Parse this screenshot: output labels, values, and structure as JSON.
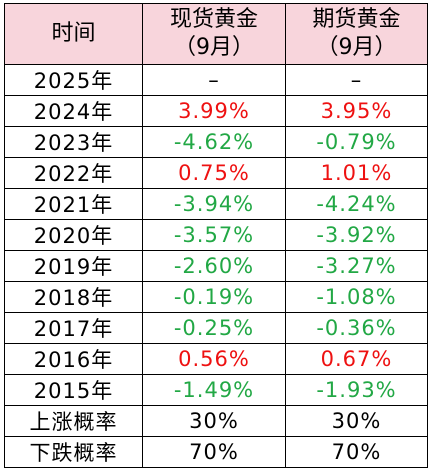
{
  "header": {
    "col1": "时间",
    "col2_line1": "现货黄金",
    "col2_line2": "（9月）",
    "col3_line1": "期货黄金",
    "col3_line2": "（9月）"
  },
  "rows": [
    {
      "year": "2025年",
      "spot": "–",
      "futures": "–",
      "spot_dir": "flat",
      "futures_dir": "flat"
    },
    {
      "year": "2024年",
      "spot": "3.99%",
      "futures": "3.95%",
      "spot_dir": "up",
      "futures_dir": "up"
    },
    {
      "year": "2023年",
      "spot": "-4.62%",
      "futures": "-0.79%",
      "spot_dir": "down",
      "futures_dir": "down"
    },
    {
      "year": "2022年",
      "spot": "0.75%",
      "futures": "1.01%",
      "spot_dir": "up",
      "futures_dir": "up"
    },
    {
      "year": "2021年",
      "spot": "-3.94%",
      "futures": "-4.24%",
      "spot_dir": "down",
      "futures_dir": "down"
    },
    {
      "year": "2020年",
      "spot": "-3.57%",
      "futures": "-3.92%",
      "spot_dir": "down",
      "futures_dir": "down"
    },
    {
      "year": "2019年",
      "spot": "-2.60%",
      "futures": "-3.27%",
      "spot_dir": "down",
      "futures_dir": "down"
    },
    {
      "year": "2018年",
      "spot": "-0.19%",
      "futures": "-1.08%",
      "spot_dir": "down",
      "futures_dir": "down"
    },
    {
      "year": "2017年",
      "spot": "-0.25%",
      "futures": "-0.36%",
      "spot_dir": "down",
      "futures_dir": "down"
    },
    {
      "year": "2016年",
      "spot": "0.56%",
      "futures": "0.67%",
      "spot_dir": "up",
      "futures_dir": "up"
    },
    {
      "year": "2015年",
      "spot": "-1.49%",
      "futures": "-1.93%",
      "spot_dir": "down",
      "futures_dir": "down"
    }
  ],
  "summary": [
    {
      "label": "上涨概率",
      "spot": "30%",
      "futures": "30%"
    },
    {
      "label": "下跌概率",
      "spot": "70%",
      "futures": "70%"
    }
  ],
  "colors": {
    "header_bg": "#f8d5dc",
    "up": "#ee1111",
    "down": "#22a845",
    "border": "#000000"
  }
}
